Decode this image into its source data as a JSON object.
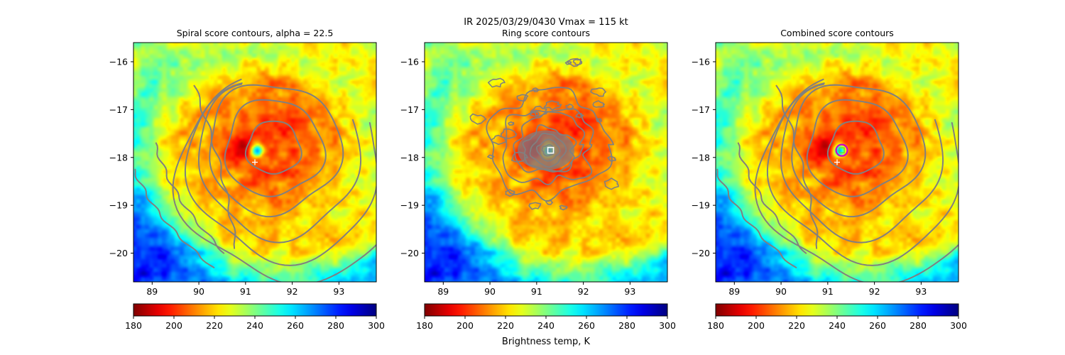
{
  "suptitle": "IR  2025/03/29/0430    Vmax = 115 kt",
  "colorbar_label": "Brightness temp, K",
  "chart_data": [
    {
      "type": "heatmap",
      "title": "Spiral score contours, alpha = 22.5",
      "xlim": [
        88.6,
        93.8
      ],
      "ylim": [
        -20.6,
        -15.6
      ],
      "xticks": [
        "89",
        "90",
        "91",
        "92",
        "93"
      ],
      "yticks": [
        "-16",
        "-17",
        "-18",
        "-19",
        "-20"
      ],
      "ytick_labels": [
        "−16",
        "−17",
        "−18",
        "−19",
        "−20"
      ],
      "storm_center": [
        91.55,
        -17.9
      ],
      "eye_center": [
        91.25,
        -17.85
      ],
      "best_track_marker": [
        91.2,
        -18.1
      ],
      "contour_style": "spiral",
      "colorbar": {
        "min": 180,
        "max": 300,
        "ticks": [
          "180",
          "200",
          "220",
          "240",
          "260",
          "280",
          "300"
        ]
      }
    },
    {
      "type": "heatmap",
      "title": "Ring score contours",
      "xlim": [
        88.6,
        93.8
      ],
      "ylim": [
        -20.6,
        -15.6
      ],
      "xticks": [
        "89",
        "90",
        "91",
        "92",
        "93"
      ],
      "yticks": [
        "-16",
        "-17",
        "-18",
        "-19",
        "-20"
      ],
      "ytick_labels": [
        "−16",
        "−17",
        "−18",
        "−19",
        "−20"
      ],
      "storm_center": [
        91.55,
        -17.9
      ],
      "eye_center": [
        91.25,
        -17.85
      ],
      "ring_max_marker": [
        91.3,
        -17.85
      ],
      "contour_style": "ring",
      "colorbar": {
        "min": 180,
        "max": 300,
        "ticks": [
          "180",
          "200",
          "220",
          "240",
          "260",
          "280",
          "300"
        ]
      }
    },
    {
      "type": "heatmap",
      "title": "Combined score contours",
      "xlim": [
        88.6,
        93.8
      ],
      "ylim": [
        -20.6,
        -15.6
      ],
      "xticks": [
        "89",
        "90",
        "91",
        "92",
        "93"
      ],
      "yticks": [
        "-16",
        "-17",
        "-18",
        "-19",
        "-20"
      ],
      "ytick_labels": [
        "−16",
        "−17",
        "−18",
        "−19",
        "−20"
      ],
      "storm_center": [
        91.55,
        -17.9
      ],
      "eye_center": [
        91.25,
        -17.85
      ],
      "best_track_marker": [
        91.2,
        -18.1
      ],
      "combined_center": [
        91.3,
        -17.85
      ],
      "contour_style": "combined",
      "colorbar": {
        "min": 180,
        "max": 300,
        "ticks": [
          "180",
          "200",
          "220",
          "240",
          "260",
          "280",
          "300"
        ]
      }
    }
  ],
  "colors": {
    "contour": "#808080",
    "marker_white": "#ffffff",
    "circle_magenta": "#cc00cc",
    "circle_green": "#66dd33"
  }
}
